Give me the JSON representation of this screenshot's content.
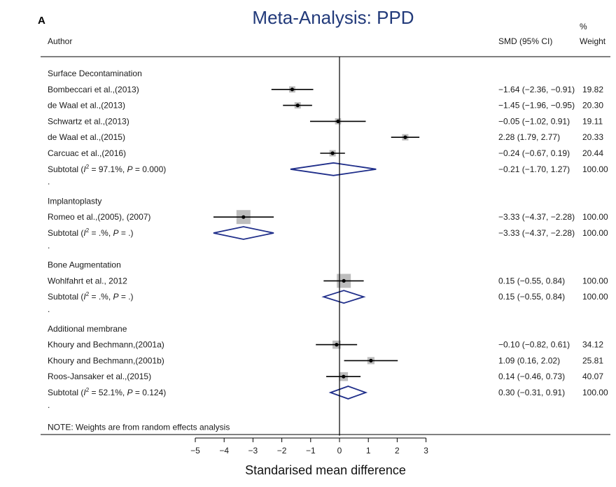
{
  "panel_letter": "A",
  "chart_data": {
    "type": "forest",
    "title": "Meta-Analysis: PPD",
    "xlabel": "Standarised mean difference",
    "columns": {
      "author": "Author",
      "effect": "SMD (95% CI)",
      "weight_line1": "%",
      "weight_line2": "Weight"
    },
    "xlim": [
      -5.5,
      3.5
    ],
    "xticks": [
      -5,
      -4,
      -3,
      -2,
      -1,
      0,
      1,
      2,
      3
    ],
    "xtick_labels": [
      "−5",
      "−4",
      "−3",
      "−2",
      "−1",
      "0",
      "1",
      "2",
      "3"
    ],
    "reference_line": 0,
    "rows": [
      {
        "kind": "group",
        "label": "Surface Decontamination"
      },
      {
        "kind": "study",
        "label": "Bombeccari et al.,(2013)",
        "est": -1.64,
        "lo": -2.36,
        "hi": -0.91,
        "weight": 19.82,
        "ci_text": "−1.64 (−2.36, −0.91)",
        "weight_text": "19.82"
      },
      {
        "kind": "study",
        "label": "de Waal  et al.,(2013)",
        "est": -1.45,
        "lo": -1.96,
        "hi": -0.95,
        "weight": 20.3,
        "ci_text": "−1.45 (−1.96, −0.95)",
        "weight_text": "20.30"
      },
      {
        "kind": "study",
        "label": "Schwartz et al.,(2013)",
        "est": -0.05,
        "lo": -1.02,
        "hi": 0.91,
        "weight": 19.11,
        "ci_text": "−0.05 (−1.02, 0.91)",
        "weight_text": "19.11"
      },
      {
        "kind": "study",
        "label": "de Waal  et al.,(2015)",
        "est": 2.28,
        "lo": 1.79,
        "hi": 2.77,
        "weight": 20.33,
        "ci_text": "2.28 (1.79, 2.77)",
        "weight_text": "20.33"
      },
      {
        "kind": "study",
        "label": "Carcuac et al.,(2016)",
        "est": -0.24,
        "lo": -0.67,
        "hi": 0.19,
        "weight": 20.44,
        "ci_text": "−0.24 (−0.67, 0.19)",
        "weight_text": "20.44"
      },
      {
        "kind": "subtotal",
        "label_prefix": "Subtotal  (",
        "i2": "I",
        "label_suffix": " = 97.1%, ",
        "p_label": "P",
        "p_text": " = 0.000)",
        "est": -0.21,
        "lo": -1.7,
        "hi": 1.27,
        "ci_text": "−0.21 (−1.70, 1.27)",
        "weight_text": "100.00"
      },
      {
        "kind": "spacer",
        "label": "."
      },
      {
        "kind": "group",
        "label": "Implantoplasty"
      },
      {
        "kind": "study",
        "label": "Romeo et al.,(2005), (2007)",
        "est": -3.33,
        "lo": -4.37,
        "hi": -2.28,
        "weight": 100.0,
        "ci_text": "−3.33 (−4.37, −2.28)",
        "weight_text": "100.00"
      },
      {
        "kind": "subtotal",
        "label_prefix": "Subtotal  (",
        "i2": "I",
        "label_suffix": " = .%, ",
        "p_label": "P",
        "p_text": " = .)",
        "est": -3.33,
        "lo": -4.37,
        "hi": -2.28,
        "ci_text": "−3.33 (−4.37, −2.28)",
        "weight_text": "100.00"
      },
      {
        "kind": "spacer",
        "label": "."
      },
      {
        "kind": "group",
        "label": "Bone Augmentation"
      },
      {
        "kind": "study",
        "label": "Wohlfahrt et al., 2012",
        "est": 0.15,
        "lo": -0.55,
        "hi": 0.84,
        "weight": 100.0,
        "ci_text": "0.15 (−0.55, 0.84)",
        "weight_text": "100.00"
      },
      {
        "kind": "subtotal",
        "label_prefix": "Subtotal  (",
        "i2": "I",
        "label_suffix": " = .%, ",
        "p_label": "P",
        "p_text": " = .)",
        "est": 0.15,
        "lo": -0.55,
        "hi": 0.84,
        "ci_text": "0.15 (−0.55, 0.84)",
        "weight_text": "100.00"
      },
      {
        "kind": "spacer",
        "label": "."
      },
      {
        "kind": "group",
        "label": "Additional membrane"
      },
      {
        "kind": "study",
        "label": "Khoury and Bechmann,(2001a)",
        "est": -0.1,
        "lo": -0.82,
        "hi": 0.61,
        "weight": 34.12,
        "ci_text": "−0.10 (−0.82, 0.61)",
        "weight_text": "34.12"
      },
      {
        "kind": "study",
        "label": "Khoury and Bechmann,(2001b)",
        "est": 1.09,
        "lo": 0.16,
        "hi": 2.02,
        "weight": 25.81,
        "ci_text": "1.09 (0.16, 2.02)",
        "weight_text": "25.81"
      },
      {
        "kind": "study",
        "label": "Roos-Jansaker et al.,(2015)",
        "est": 0.14,
        "lo": -0.46,
        "hi": 0.73,
        "weight": 40.07,
        "ci_text": "0.14 (−0.46, 0.73)",
        "weight_text": "40.07"
      },
      {
        "kind": "subtotal",
        "label_prefix": "Subtotal  (",
        "i2": "I",
        "label_suffix": " = 52.1%, ",
        "p_label": "P",
        "p_text": " = 0.124)",
        "est": 0.3,
        "lo": -0.31,
        "hi": 0.91,
        "ci_text": "0.30 (−0.31, 0.91)",
        "weight_text": "100.00"
      },
      {
        "kind": "spacer",
        "label": "."
      },
      {
        "kind": "note",
        "label": "NOTE: Weights are from random effects analysis"
      }
    ],
    "colors": {
      "title": "#223a7a",
      "diamond": "#1f2e8a",
      "box": "#bdbdbd",
      "ci_line": "#000000",
      "point": "#000000",
      "axis": "#000000"
    }
  }
}
